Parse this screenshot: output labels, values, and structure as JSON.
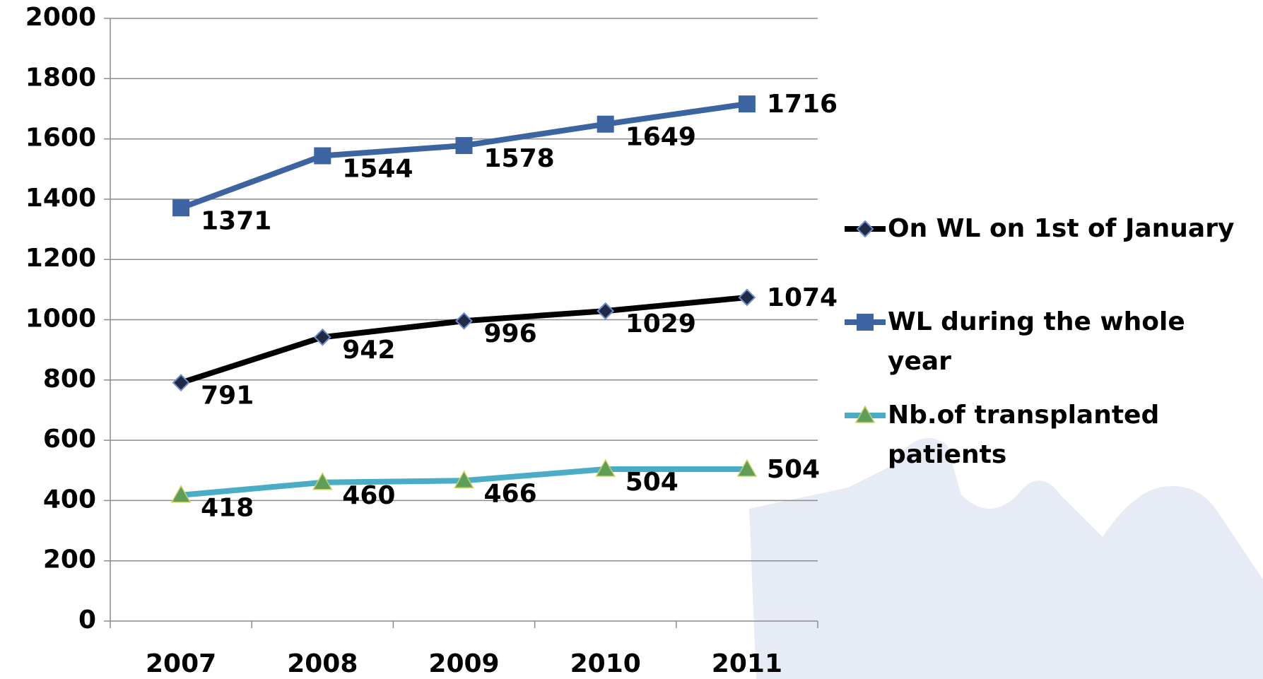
{
  "chart_data": {
    "type": "line",
    "categories": [
      "2007",
      "2008",
      "2009",
      "2010",
      "2011"
    ],
    "series": [
      {
        "name": "On WL on 1st of January",
        "color": "#000000",
        "marker": "diamond",
        "marker_color": "#1f2a44",
        "values": [
          791,
          942,
          996,
          1029,
          1074
        ]
      },
      {
        "name": "WL during the whole year",
        "color": "#3b64a0",
        "marker": "square",
        "marker_color": "#3b64a0",
        "values": [
          1371,
          1544,
          1578,
          1649,
          1716
        ]
      },
      {
        "name": "Nb.of transplanted patients",
        "color": "#4bacc6",
        "marker": "triangle",
        "marker_color": "#5f9e58",
        "values": [
          418,
          460,
          466,
          504,
          504
        ]
      }
    ],
    "ylim": [
      0,
      2000
    ],
    "yticks": [
      0,
      200,
      400,
      600,
      800,
      1000,
      1200,
      1400,
      1600,
      1800,
      2000
    ],
    "grid": true,
    "legend": "right"
  }
}
